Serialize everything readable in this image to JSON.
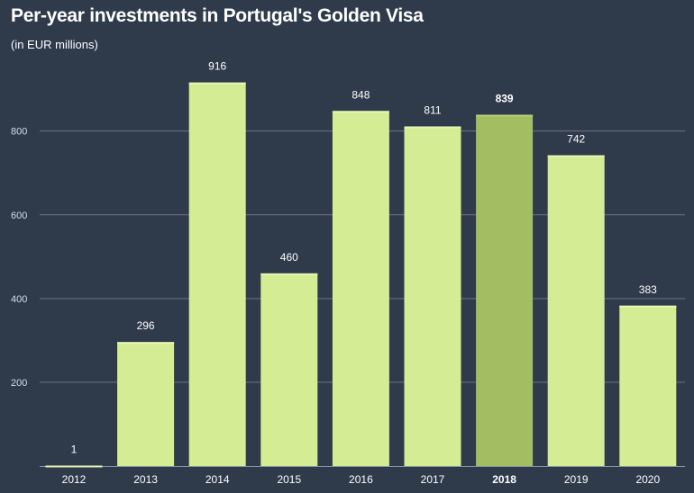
{
  "title": "Per-year investments in Portugal's Golden Visa",
  "subtitle": "(in EUR millions)",
  "colors": {
    "background": "#2f3a4b",
    "bar": "#d4ec94",
    "bar_highlight": "#a3bd63",
    "text": "#ffffff"
  },
  "chart_data": {
    "type": "bar",
    "title": "Per-year investments in Portugal's Golden Visa",
    "subtitle": "(in EUR millions)",
    "categories": [
      "2012",
      "2013",
      "2014",
      "2015",
      "2016",
      "2017",
      "2018",
      "2019",
      "2020"
    ],
    "values": [
      1,
      296,
      916,
      460,
      848,
      811,
      839,
      742,
      383
    ],
    "highlight": "2018",
    "ylim": [
      0,
      1000
    ],
    "yticks": [
      200,
      400,
      600,
      800
    ],
    "xlabel": "",
    "ylabel": "",
    "grid": true,
    "legend": "none",
    "data_labels": true
  }
}
